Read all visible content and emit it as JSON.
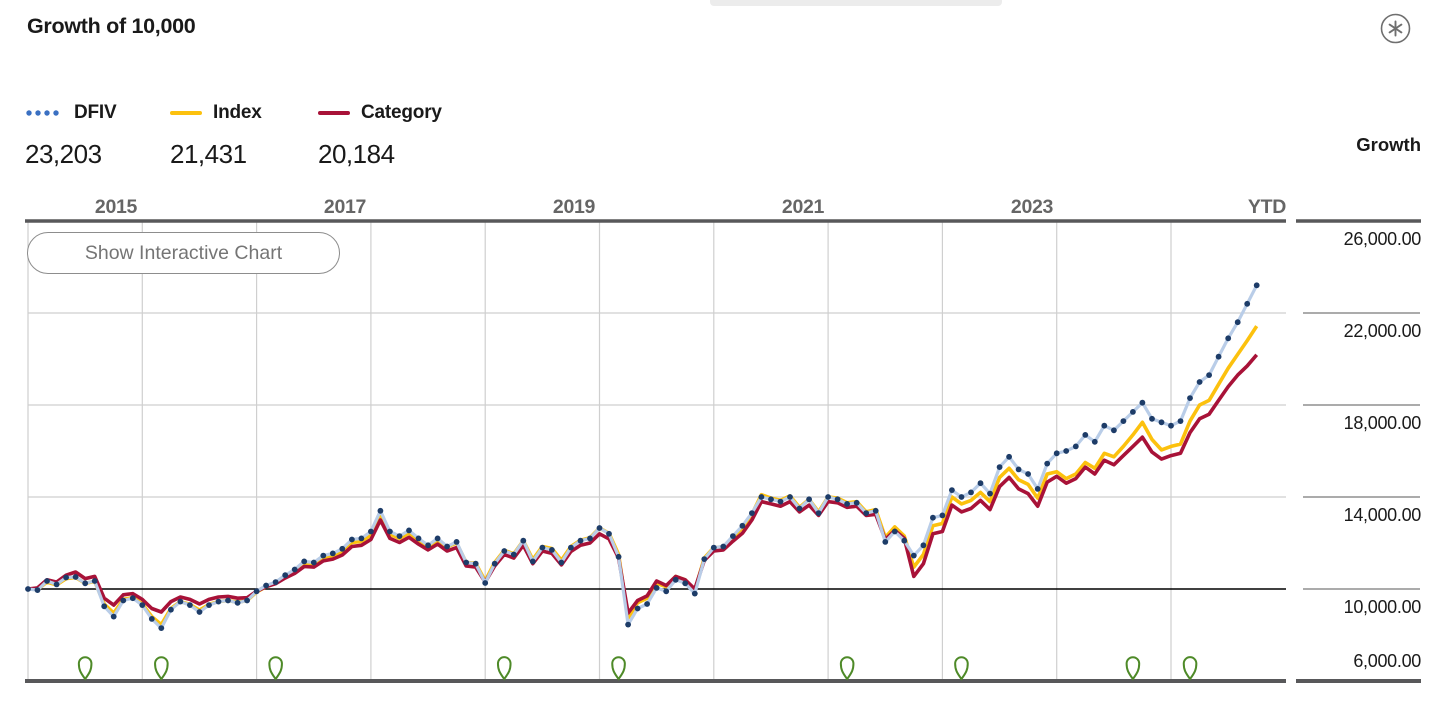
{
  "page": {
    "title": "Growth of 10,000"
  },
  "toolbar": {
    "asterisk_icon": "circled-asterisk"
  },
  "legend": {
    "items": [
      {
        "label": "DFIV",
        "value": "23,203",
        "swatch": "dotted-line",
        "legend_dot_color": "#3a70c2",
        "chart_dot_color": "#1d3c68",
        "chart_line_color": "#b9cde8"
      },
      {
        "label": "Index",
        "value": "21,431",
        "swatch": "solid-line",
        "color": "#fcc10e"
      },
      {
        "label": "Category",
        "value": "20,184",
        "swatch": "solid-line",
        "color": "#a81238"
      }
    ]
  },
  "button": {
    "label": "Show Interactive Chart"
  },
  "chart_data": {
    "type": "line",
    "title": "Growth of 10,000",
    "x_unit": "month-end",
    "x_start": "2014-12",
    "x_end": "2025-09",
    "x_tick_labels": [
      "2015",
      "2017",
      "2019",
      "2021",
      "2023",
      "YTD"
    ],
    "y_axis": {
      "title": "Growth",
      "range": [
        6000,
        26000
      ],
      "tick_step": 4000,
      "tick_labels": [
        "26,000.00",
        "22,000.00",
        "18,000.00",
        "14,000.00",
        "10,000.00",
        "6,000.00"
      ],
      "baseline_value": 10000
    },
    "grid": {
      "vertical": "every January 2015-2025",
      "horizontal": "every 4000",
      "color": "#cfcfcf"
    },
    "series": [
      {
        "name": "DFIV",
        "style": "dotted",
        "final_value": 23203,
        "dot_color": "#1d3c68",
        "line_color": "#b9cde8",
        "values": [
          10000,
          9950,
          10350,
          10200,
          10500,
          10520,
          10250,
          10350,
          9250,
          8800,
          9500,
          9600,
          9300,
          8700,
          8300,
          9100,
          9450,
          9300,
          9000,
          9300,
          9450,
          9500,
          9400,
          9500,
          9900,
          10150,
          10300,
          10600,
          10850,
          11200,
          11150,
          11450,
          11550,
          11750,
          12150,
          12200,
          12500,
          13400,
          12500,
          12300,
          12550,
          12200,
          11900,
          12200,
          11850,
          12050,
          11150,
          11100,
          10260,
          11100,
          11650,
          11500,
          12100,
          11200,
          11800,
          11700,
          11150,
          11800,
          12100,
          12200,
          12650,
          12400,
          11400,
          8450,
          9150,
          9350,
          10050,
          9900,
          10400,
          10250,
          9800,
          11300,
          11800,
          11850,
          12300,
          12750,
          13300,
          14000,
          13900,
          13800,
          14000,
          13500,
          13900,
          13300,
          14000,
          13900,
          13700,
          13750,
          13300,
          13400,
          12050,
          12500,
          12100,
          11450,
          11900,
          13100,
          13200,
          14300,
          14000,
          14200,
          14600,
          14150,
          15300,
          15750,
          15200,
          15000,
          14350,
          15450,
          15900,
          16000,
          16200,
          16700,
          16400,
          17100,
          16900,
          17300,
          17700,
          18100,
          17400,
          17250,
          17100,
          17300,
          18300,
          19000,
          19300,
          20100,
          20900,
          21600,
          22400,
          23203
        ]
      },
      {
        "name": "Index",
        "style": "solid",
        "final_value": 21431,
        "color": "#fcc10e",
        "values": [
          10000,
          9980,
          10300,
          10180,
          10450,
          10500,
          10250,
          10330,
          9350,
          8950,
          9550,
          9630,
          9350,
          8800,
          8450,
          9150,
          9450,
          9330,
          9080,
          9330,
          9450,
          9500,
          9420,
          9500,
          9870,
          10100,
          10250,
          10530,
          10760,
          11100,
          11060,
          11350,
          11440,
          11630,
          12020,
          12070,
          12350,
          13200,
          12380,
          12200,
          12430,
          12120,
          11850,
          12130,
          11830,
          12000,
          11150,
          11120,
          10350,
          11150,
          11680,
          11530,
          12100,
          11280,
          11850,
          11760,
          11250,
          11850,
          12120,
          12230,
          12650,
          12420,
          11500,
          8750,
          9400,
          9600,
          10250,
          10100,
          10550,
          10400,
          9950,
          11350,
          11800,
          11830,
          12250,
          12650,
          13250,
          14100,
          13950,
          13850,
          14050,
          13550,
          13900,
          13350,
          14000,
          13950,
          13750,
          13800,
          13350,
          13450,
          12250,
          12700,
          12300,
          10950,
          11500,
          12750,
          12850,
          14000,
          13700,
          13850,
          14200,
          13800,
          14850,
          15250,
          14750,
          14550,
          13950,
          15000,
          15100,
          14800,
          15000,
          15500,
          15250,
          15900,
          15750,
          16200,
          16700,
          17250,
          16500,
          16050,
          16200,
          16300,
          17300,
          18000,
          18200,
          18900,
          19600,
          20200,
          20800,
          21431
        ]
      },
      {
        "name": "Category",
        "style": "solid",
        "final_value": 20184,
        "color": "#a81238",
        "values": [
          10000,
          10050,
          10400,
          10300,
          10600,
          10740,
          10450,
          10550,
          9600,
          9300,
          9750,
          9800,
          9550,
          9150,
          9000,
          9450,
          9650,
          9550,
          9350,
          9550,
          9650,
          9680,
          9600,
          9620,
          9900,
          10100,
          10230,
          10480,
          10680,
          10980,
          10950,
          11220,
          11300,
          11480,
          11850,
          11900,
          12150,
          13000,
          12200,
          12020,
          12250,
          11950,
          11700,
          11950,
          11650,
          11800,
          11000,
          10950,
          10300,
          11000,
          11500,
          11350,
          11900,
          11100,
          11650,
          11550,
          11050,
          11630,
          11900,
          12000,
          12400,
          12180,
          11350,
          8950,
          9500,
          9700,
          10350,
          10150,
          10550,
          10400,
          10000,
          11250,
          11650,
          11700,
          12080,
          12420,
          13000,
          13800,
          13700,
          13600,
          13800,
          13350,
          13650,
          13200,
          13800,
          13750,
          13550,
          13600,
          13200,
          13250,
          12150,
          12550,
          12200,
          10550,
          11100,
          12400,
          12500,
          13650,
          13350,
          13500,
          13850,
          13450,
          14450,
          14850,
          14350,
          14150,
          13600,
          14650,
          14900,
          14600,
          14800,
          15300,
          15000,
          15600,
          15400,
          15800,
          16200,
          16600,
          15950,
          15650,
          15800,
          15900,
          16800,
          17400,
          17600,
          18200,
          18800,
          19300,
          19700,
          20184
        ]
      }
    ],
    "event_markers": {
      "shape": "droplet-pin",
      "color": "#4e8a28",
      "month_indices": [
        6,
        14,
        26,
        50,
        62,
        86,
        98,
        116,
        122
      ]
    }
  }
}
